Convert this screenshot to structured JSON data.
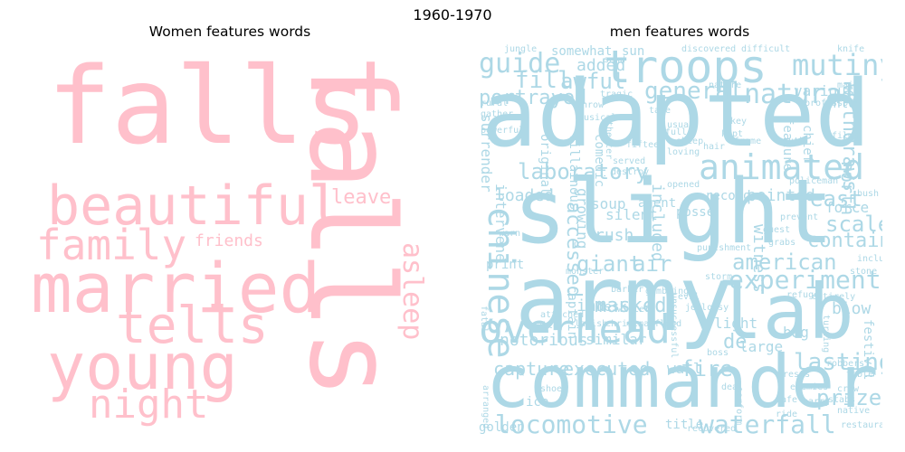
{
  "figure_title": "1960-1970",
  "colors": {
    "women": "#FFC0CB",
    "men": "#ADD8E6"
  },
  "women": {
    "title": "Women features words",
    "words": {
      "falls": "falls",
      "falls_vertical": "falls",
      "beautiful": "beautiful",
      "married": "married",
      "young": "young",
      "family": "family",
      "tells": "tells",
      "night": "night",
      "leave": "leave",
      "friends": "friends",
      "asleep": "asleep"
    }
  },
  "men": {
    "title": "men features words",
    "words": {
      "adapted": "adapted",
      "slight": "slight",
      "army": "army",
      "commander": "commander",
      "lab": "lab",
      "troops": "troops",
      "animated": "animated",
      "overhead": "overhead",
      "chinese": "chinese",
      "locomotive": "locomotive",
      "waterfall": "waterfall",
      "experiment": "experiment",
      "mutiny": "mutiny",
      "guide": "guide",
      "natural": "natural",
      "general": "general",
      "laboratory": "laboratory",
      "fill": "fill",
      "awful": "awful",
      "portrayed": "portrayed",
      "added": "added",
      "giant": "giant",
      "air": "air",
      "american": "american",
      "capture": "capture",
      "executed": "executed",
      "fire": "fire",
      "lasting": "lasting",
      "prize": "prize",
      "masked": "masked",
      "east": "east",
      "scale": "scale",
      "contain": "contain",
      "withdraws": "withdraws",
      "north": "north",
      "loaded": "loaded",
      "accessed": "accessed",
      "rush": "rush",
      "inn": "inn",
      "desk": "desk",
      "notorious": "notorious",
      "similar": "similar",
      "de": "de",
      "large": "large",
      "bag": "bag",
      "light": "light",
      "blow": "blow",
      "festival": "festival",
      "wall": "wall",
      "title": "title",
      "golden": "golden",
      "ice": "ice",
      "intervene": "intervene",
      "surrender": "surrender",
      "included": "included",
      "witness": "witness",
      "pointed": "pointed",
      "force": "force",
      "silent": "silent",
      "soup": "soup",
      "growing": "growing",
      "print": "print",
      "captain": "captain",
      "sun": "sun",
      "somewhat": "somewhat",
      "various": "various",
      "onto": "onto",
      "villainous": "villainous",
      "original": "original",
      "comedic": "comedic",
      "record": "record",
      "feature": "feature",
      "chief": "chief",
      "posse": "posse",
      "agent": "agent",
      "tragic": "tragic",
      "jungle": "jungle",
      "send": "send",
      "rural": "rural",
      "gather": "gather",
      "powerful": "powerful",
      "throw": "throw",
      "musical": "musical",
      "theater": "theater",
      "tale": "tale",
      "usual": "usual",
      "sheep": "sheep",
      "loving": "loving",
      "fifteen": "fifteen",
      "served": "served",
      "destroy": "destroy",
      "fatal": "fatal",
      "valley": "valley",
      "attached": "attached",
      "lavish": "lavish",
      "christmas": "christmas",
      "monster": "monster",
      "winter": "winter",
      "barber": "barber",
      "gambling": "gambling",
      "evil": "evil",
      "jealousy": "jealousy",
      "shoe": "shoe",
      "arranged": "arranged",
      "recovered": "recovered",
      "restaurant": "restaurant",
      "native": "native",
      "stabs": "stabs",
      "crow": "crow",
      "table": "table",
      "refuge": "refuge",
      "entirely": "entirely",
      "turning": "turning",
      "include": "include",
      "stone": "stone",
      "bush": "bush",
      "prevent": "prevent",
      "guest": "guest",
      "grabs": "grabs",
      "policeman": "policeman",
      "professor": "professor",
      "key": "key",
      "kept": "kept",
      "frame": "frame",
      "hair": "hair",
      "full": "full",
      "films": "films",
      "south": "south",
      "nature": "nature",
      "main": "main",
      "knife": "knife",
      "punishment": "punishment",
      "opened": "opened",
      "unsuccessful": "unsuccessful",
      "boss": "boss",
      "rests": "rests",
      "enemies": "enemies",
      "discovered": "discovered",
      "difficult": "difficult",
      "deal": "deal",
      "warn": "warn",
      "flood": "flood",
      "storm": "storm",
      "harry": "harry",
      "robbers": "robbers",
      "safe": "safe",
      "perform": "perform",
      "ride": "ride"
    }
  }
}
